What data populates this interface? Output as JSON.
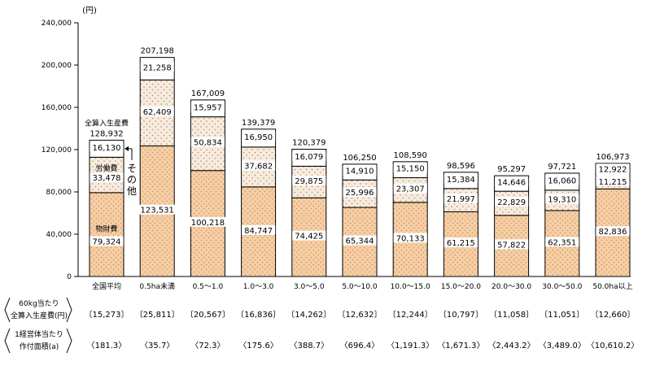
{
  "chart_data": {
    "type": "bar",
    "stacked": true,
    "unit": "(円)",
    "ylim": [
      0,
      240000
    ],
    "yticks": [
      "0",
      "40,000",
      "80,000",
      "120,000",
      "160,000",
      "200,000",
      "240,000"
    ],
    "categories": [
      "全国平均",
      "0.5ha未満",
      "0.5～1.0",
      "1.0～3.0",
      "3.0～5.0",
      "5.0～10.0",
      "10.0～15.0",
      "15.0～20.0",
      "20.0～30.0",
      "30.0～50.0",
      "50.0ha以上"
    ],
    "series": [
      {
        "name": "物財費",
        "values": [
          79324,
          123531,
          100218,
          84747,
          74425,
          65344,
          70133,
          61215,
          57822,
          62351,
          82836
        ],
        "labels": [
          "79,324",
          "123,531",
          "100,218",
          "84,747",
          "74,425",
          "65,344",
          "70,133",
          "61,215",
          "57,822",
          "62,351",
          "82,836"
        ]
      },
      {
        "name": "労働費",
        "values": [
          33478,
          62409,
          50834,
          37682,
          29875,
          25996,
          23307,
          21997,
          22829,
          19310,
          11215
        ],
        "labels": [
          "33,478",
          "62,409",
          "50,834",
          "37,682",
          "29,875",
          "25,996",
          "23,307",
          "21,997",
          "22,829",
          "19,310",
          "11,215"
        ]
      },
      {
        "name": "その他",
        "values": [
          16130,
          21258,
          15957,
          16950,
          16079,
          14910,
          15150,
          15384,
          14646,
          16060,
          12922
        ],
        "labels": [
          "16,130",
          "21,258",
          "15,957",
          "16,950",
          "16,079",
          "14,910",
          "15,150",
          "15,384",
          "14,646",
          "16,060",
          "12,922"
        ]
      }
    ],
    "totals": [
      128932,
      207198,
      167009,
      139379,
      120379,
      106250,
      108590,
      98596,
      95297,
      97721,
      106973
    ],
    "total_labels": [
      "128,932",
      "207,198",
      "167,009",
      "139,379",
      "120,379",
      "106,250",
      "108,590",
      "98,596",
      "95,297",
      "97,721",
      "106,973"
    ],
    "total_caption": "全算入生産費",
    "row1_header": [
      "60kg当たり",
      "全算入生産費(円)"
    ],
    "row1_values": [
      "〔15,273〕",
      "〔25,811〕",
      "〔20,567〕",
      "〔16,836〕",
      "〔14,262〕",
      "〔12,632〕",
      "〔12,244〕",
      "〔10,797〕",
      "〔11,058〕",
      "〔11,051〕",
      "〔12,660〕"
    ],
    "row2_header": [
      "1経営体当たり",
      "作付面積(a)"
    ],
    "row2_values": [
      "〈181.3〉",
      "〈35.7〉",
      "〈72.3〉",
      "〈175.6〉",
      "〈388.7〉",
      "〈696.4〉",
      "〈1,191.3〉",
      "〈1,671.3〉",
      "〈2,443.2〉",
      "〈3,489.0〉",
      "〈10,610.2〉"
    ],
    "colors": {
      "material": "#f6cfa6",
      "labor": "#f3e7da",
      "other": "#ffffff",
      "dot": "#c98a55",
      "border": "#000000"
    }
  }
}
